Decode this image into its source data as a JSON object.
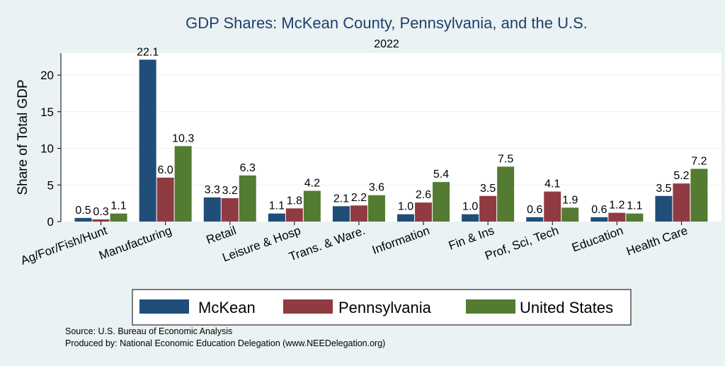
{
  "chart_data": {
    "type": "bar",
    "title": "GDP Shares: McKean County, Pennsylvania, and the U.S.",
    "subtitle": "2022",
    "ylabel": "Share of Total GDP",
    "xlabel": "",
    "ylim": [
      0,
      23
    ],
    "yticks": [
      0,
      5,
      10,
      15,
      20
    ],
    "grid": true,
    "legend_position": "bottom",
    "categories": [
      "Ag/For/Fish/Hunt",
      "Manufacturing",
      "Retail",
      "Leisure & Hosp",
      "Trans. & Ware.",
      "Information",
      "Fin & Ins",
      "Prof, Sci, Tech",
      "Education",
      "Health Care"
    ],
    "series": [
      {
        "name": "McKean",
        "color": "#1f4e79",
        "values": [
          0.5,
          22.1,
          3.3,
          1.1,
          2.1,
          1.0,
          1.0,
          0.6,
          0.6,
          3.5
        ],
        "labels": [
          "0.5",
          "22.1",
          "3.3",
          "1.1",
          "2.1",
          "1.0",
          "1.0",
          "0.6",
          "0.6",
          "3.5"
        ]
      },
      {
        "name": "Pennsylvania",
        "color": "#903a42",
        "values": [
          0.3,
          6.0,
          3.2,
          1.8,
          2.2,
          2.6,
          3.5,
          4.1,
          1.2,
          5.2
        ],
        "labels": [
          "0.3",
          "6.0",
          "3.2",
          "1.8",
          "2.2",
          "2.6",
          "3.5",
          "4.1",
          "1.2",
          "5.2"
        ]
      },
      {
        "name": "United States",
        "color": "#547b32",
        "values": [
          1.1,
          10.3,
          6.3,
          4.2,
          3.6,
          5.4,
          7.5,
          1.9,
          1.1,
          7.2
        ],
        "labels": [
          "1.1",
          "10.3",
          "6.3",
          "4.2",
          "3.6",
          "5.4",
          "7.5",
          "1.9",
          "1.1",
          "7.2"
        ]
      }
    ]
  },
  "notes": {
    "source": "Source: U.S. Bureau of Economic Analysis",
    "produced_by": "Produced by: National Economic Education Delegation (www.NEEDelegation.org)"
  }
}
